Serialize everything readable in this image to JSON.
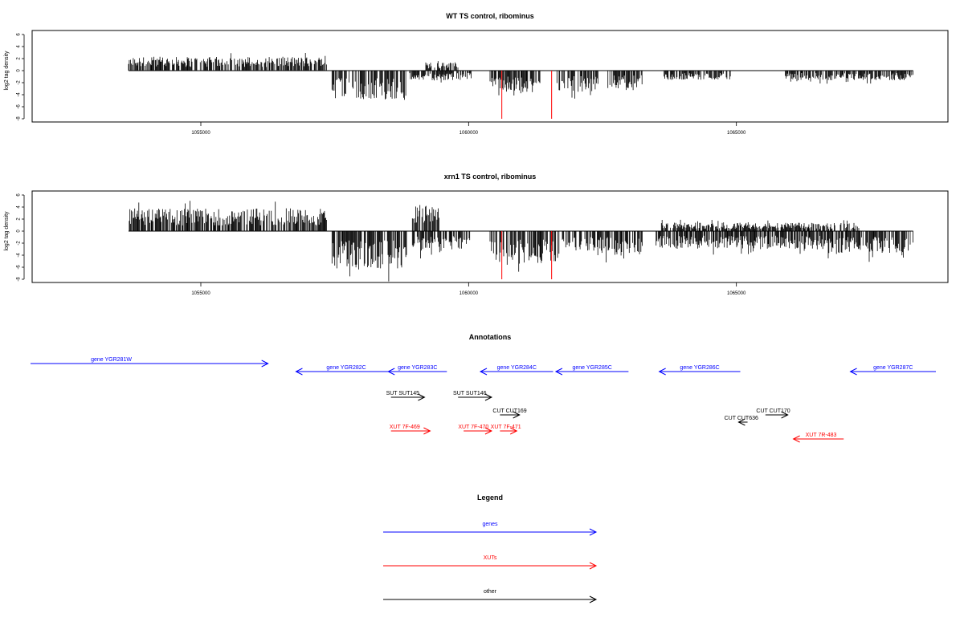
{
  "chart_data": [
    {
      "type": "bar",
      "title": "WT TS control, ribominus",
      "xlabel": "",
      "ylabel": "log2 tag density",
      "xlim": [
        1052300,
        1068500
      ],
      "ylim": [
        -8,
        6
      ],
      "yticks": [
        6,
        4,
        2,
        0,
        -2,
        -4,
        -6,
        -8
      ],
      "xticks": [
        1055000,
        1060000,
        1065000
      ],
      "xtick_labels": [
        "1055000",
        "1060000",
        "1065000"
      ],
      "segments": [
        {
          "start": 1053650,
          "end": 1057350,
          "amp": 2.3,
          "sign": 1
        },
        {
          "start": 1057450,
          "end": 1058850,
          "amp": 4.8,
          "sign": -1
        },
        {
          "start": 1058900,
          "end": 1060050,
          "amp": 1.6,
          "sign": -1
        },
        {
          "start": 1059200,
          "end": 1059800,
          "amp": 1.4,
          "sign": 1
        },
        {
          "start": 1060400,
          "end": 1061350,
          "amp": 3.8,
          "sign": -1
        },
        {
          "start": 1061650,
          "end": 1062450,
          "amp": 3.6,
          "sign": -1
        },
        {
          "start": 1062600,
          "end": 1063250,
          "amp": 3.0,
          "sign": -1
        },
        {
          "start": 1063650,
          "end": 1064900,
          "amp": 1.6,
          "sign": -1
        },
        {
          "start": 1065900,
          "end": 1068300,
          "amp": 1.6,
          "sign": -1
        }
      ],
      "highlights": [
        {
          "x": 1060620,
          "value": -8,
          "color": "#ff0000"
        },
        {
          "x": 1061550,
          "value": -8,
          "color": "#ff0000"
        }
      ],
      "bar_color": "#000000"
    },
    {
      "type": "bar",
      "title": "xrn1 TS control, ribominus",
      "xlabel": "",
      "ylabel": "log2 tag density",
      "xlim": [
        1052300,
        1068500
      ],
      "ylim": [
        -8,
        6
      ],
      "yticks": [
        6,
        4,
        2,
        0,
        -2,
        -4,
        -6,
        -8
      ],
      "xticks": [
        1055000,
        1060000,
        1065000
      ],
      "xtick_labels": [
        "1055000",
        "1060000",
        "1065000"
      ],
      "segments": [
        {
          "start": 1053650,
          "end": 1057350,
          "amp": 3.8,
          "sign": 1
        },
        {
          "start": 1057450,
          "end": 1058850,
          "amp": 6.2,
          "sign": -1
        },
        {
          "start": 1058950,
          "end": 1059450,
          "amp": 4.2,
          "sign": 1
        },
        {
          "start": 1058950,
          "end": 1060050,
          "amp": 3.4,
          "sign": -1
        },
        {
          "start": 1060400,
          "end": 1061700,
          "amp": 5.6,
          "sign": -1
        },
        {
          "start": 1061750,
          "end": 1063250,
          "amp": 4.0,
          "sign": -1
        },
        {
          "start": 1063500,
          "end": 1066600,
          "amp": 3.0,
          "sign": -1
        },
        {
          "start": 1066600,
          "end": 1068300,
          "amp": 3.8,
          "sign": -1
        },
        {
          "start": 1063600,
          "end": 1067300,
          "amp": 1.4,
          "sign": 1
        }
      ],
      "highlights": [
        {
          "x": 1060620,
          "value": -8,
          "color": "#ff0000"
        },
        {
          "x": 1061550,
          "value": -8,
          "color": "#ff0000"
        }
      ],
      "bar_color": "#000000"
    }
  ],
  "annotations": {
    "title": "Annotations",
    "items": [
      {
        "label": "gene YGR281W",
        "color": "#0000ff",
        "dir": "right",
        "start": 1052300,
        "end": 1056550,
        "row": 0,
        "label_pos": 0.34
      },
      {
        "label": "gene YGR282C",
        "color": "#0000ff",
        "dir": "left",
        "start": 1057050,
        "end": 1058850,
        "row": 1,
        "label_pos": 0.5
      },
      {
        "label": "gene YGR283C",
        "color": "#0000ff",
        "dir": "left",
        "start": 1058700,
        "end": 1059750,
        "row": 1,
        "label_pos": 0.5
      },
      {
        "label": "gene YGR284C",
        "color": "#0000ff",
        "dir": "left",
        "start": 1060350,
        "end": 1061650,
        "row": 1,
        "label_pos": 0.5
      },
      {
        "label": "gene YGR285C",
        "color": "#0000ff",
        "dir": "left",
        "start": 1061700,
        "end": 1063000,
        "row": 1,
        "label_pos": 0.5
      },
      {
        "label": "gene YGR286C",
        "color": "#0000ff",
        "dir": "left",
        "start": 1063550,
        "end": 1065000,
        "row": 1,
        "label_pos": 0.5
      },
      {
        "label": "gene YGR287C",
        "color": "#0000ff",
        "dir": "left",
        "start": 1066970,
        "end": 1068500,
        "row": 1,
        "label_pos": 0.5
      },
      {
        "label": "SUT SUT145",
        "color": "#000000",
        "dir": "right",
        "start": 1058750,
        "end": 1059350,
        "row": 2,
        "label_pos": 0.35
      },
      {
        "label": "SUT SUT146",
        "color": "#000000",
        "dir": "right",
        "start": 1059950,
        "end": 1060550,
        "row": 2,
        "label_pos": 0.35
      },
      {
        "label": "CUT CUT169",
        "color": "#000000",
        "dir": "right",
        "start": 1060700,
        "end": 1061050,
        "row": 3,
        "label_pos": 0.5
      },
      {
        "label": "XUT 7F-469",
        "color": "#ff0000",
        "dir": "right",
        "start": 1058750,
        "end": 1059450,
        "row": 4,
        "label_pos": 0.35
      },
      {
        "label": "XUT 7F-470",
        "color": "#ff0000",
        "dir": "right",
        "start": 1060050,
        "end": 1060550,
        "row": 4,
        "label_pos": 0.35
      },
      {
        "label": "XUT 7F-471",
        "color": "#ff0000",
        "dir": "right",
        "start": 1060700,
        "end": 1061000,
        "row": 4,
        "label_pos": 0.35
      },
      {
        "label": "CUT CUT170",
        "color": "#000000",
        "dir": "right",
        "start": 1065450,
        "end": 1065850,
        "row": 3,
        "label_pos": 0.35
      },
      {
        "label": "CUT CUT636",
        "color": "#000000",
        "dir": "left",
        "start": 1064970,
        "end": 1065130,
        "row": 5,
        "label_pos": 0.3
      },
      {
        "label": "XUT 7R-483",
        "color": "#ff0000",
        "dir": "left",
        "start": 1065950,
        "end": 1066850,
        "row": 6,
        "label_pos": 0.55
      }
    ]
  },
  "legend": {
    "title": "Legend",
    "items": [
      {
        "label": "genes",
        "color": "#0000ff"
      },
      {
        "label": "XUTs",
        "color": "#ff0000"
      },
      {
        "label": "other",
        "color": "#000000"
      }
    ]
  }
}
